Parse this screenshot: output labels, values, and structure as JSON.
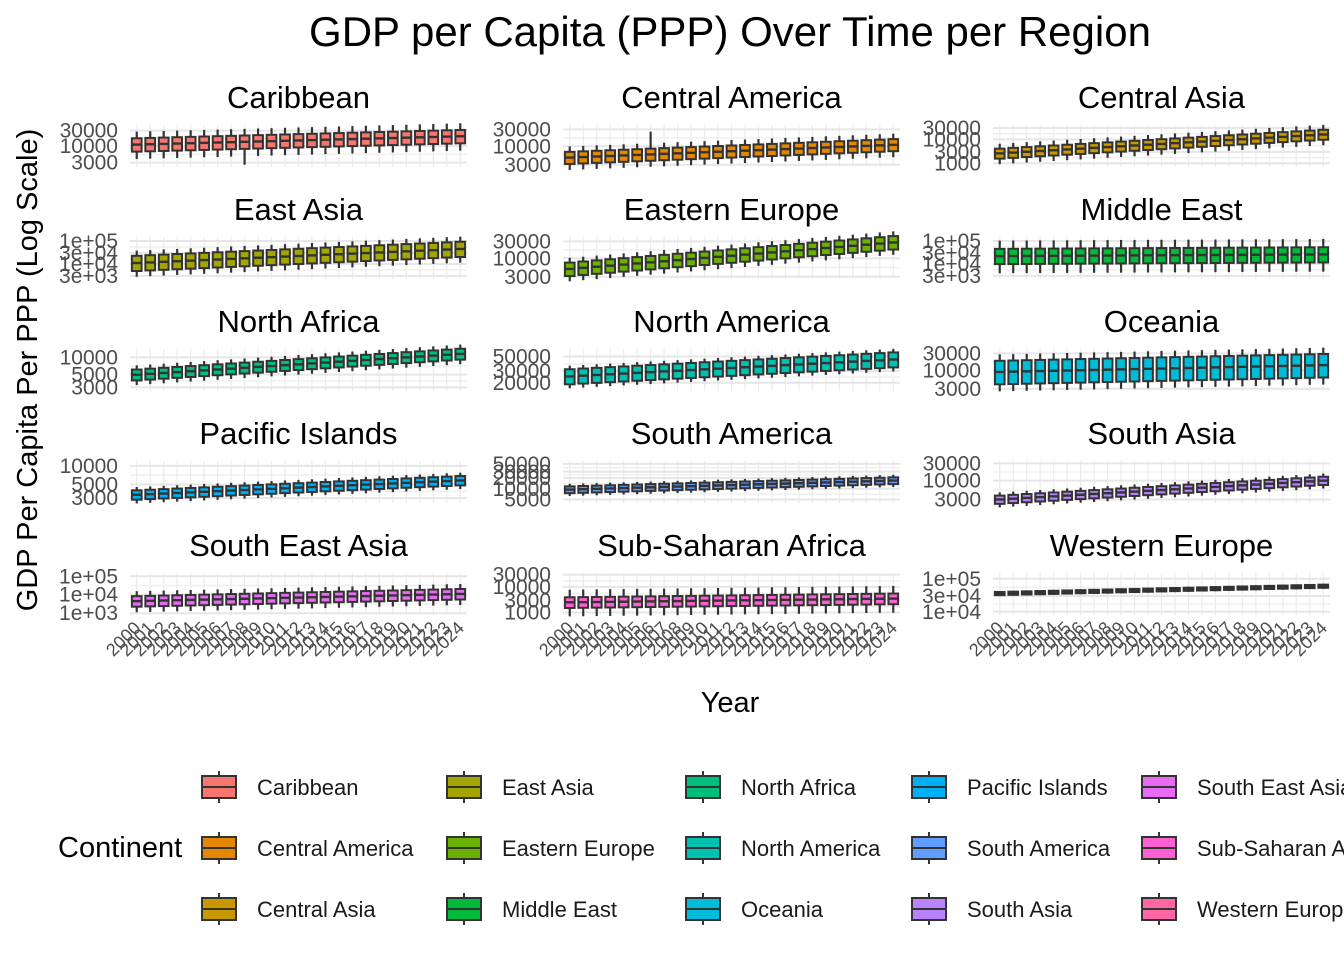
{
  "chart_data": {
    "type": "box",
    "title": "GDP per Capita (PPP) Over Time per Region",
    "xlabel": "Year",
    "ylabel": "GDP Per Capita Per PPP (Log Scale)",
    "y_scale": "log",
    "grid": true,
    "x_tick_labels": [
      "2000",
      "2001",
      "2002",
      "2003",
      "2004",
      "2005",
      "2006",
      "2007",
      "2008",
      "2009",
      "2010",
      "2011",
      "2012",
      "2013",
      "2014",
      "2015",
      "2016",
      "2017",
      "2018",
      "2019",
      "2020",
      "2021",
      "2022",
      "2023",
      "2024"
    ],
    "legend": {
      "title": "Continent",
      "position": "bottom",
      "entries": [
        {
          "name": "Caribbean",
          "color": "#F8766D"
        },
        {
          "name": "Central America",
          "color": "#E58700"
        },
        {
          "name": "Central Asia",
          "color": "#C99800"
        },
        {
          "name": "East Asia",
          "color": "#A3A500"
        },
        {
          "name": "Eastern Europe",
          "color": "#6BB100"
        },
        {
          "name": "Middle East",
          "color": "#00BA38"
        },
        {
          "name": "North Africa",
          "color": "#00BF7D"
        },
        {
          "name": "North America",
          "color": "#00C0AF"
        },
        {
          "name": "Oceania",
          "color": "#00BCD8"
        },
        {
          "name": "Pacific Islands",
          "color": "#00B0F6"
        },
        {
          "name": "South America",
          "color": "#619CFF"
        },
        {
          "name": "South Asia",
          "color": "#B983FF"
        },
        {
          "name": "South East Asia",
          "color": "#E76BF3"
        },
        {
          "name": "Sub-Saharan Africa",
          "color": "#FD61D1"
        },
        {
          "name": "Western Europe",
          "color": "#FF67A4"
        }
      ]
    },
    "panels": [
      {
        "region": "Caribbean",
        "color": "#F8766D",
        "ylim": [
          2200,
          45000
        ],
        "y_ticks": [
          3000,
          10000,
          30000
        ],
        "y_tick_labels": [
          "3000",
          "10000",
          "30000"
        ],
        "median_start": 11000,
        "median_end": 20000,
        "spread": 0.22,
        "whisker": 0.45,
        "extra_low": {
          "year_index": 8,
          "value": 2600
        }
      },
      {
        "region": "Central America",
        "color": "#E58700",
        "ylim": [
          2600,
          40000
        ],
        "y_ticks": [
          3000,
          10000,
          30000
        ],
        "y_tick_labels": [
          "3000",
          "10000",
          "30000"
        ],
        "median_start": 4800,
        "median_end": 11000,
        "spread": 0.18,
        "whisker": 0.35,
        "extra_high": {
          "year_index": 6,
          "value": 26000
        }
      },
      {
        "region": "Central Asia",
        "color": "#C99800",
        "ylim": [
          700,
          40000
        ],
        "y_ticks": [
          1000,
          3000,
          10000,
          30000
        ],
        "y_tick_labels": [
          "1000",
          "3000",
          "10000",
          "30000"
        ],
        "median_start": 2600,
        "median_end": 16000,
        "spread": 0.22,
        "whisker": 0.45
      },
      {
        "region": "East Asia",
        "color": "#A3A500",
        "ylim": [
          2200,
          150000
        ],
        "y_ticks": [
          3000,
          10000,
          30000,
          100000
        ],
        "y_tick_labels": [
          "3e+03",
          "1e+04",
          "3e+04",
          "1e+05"
        ],
        "median_start": 11000,
        "median_end": 45000,
        "spread": 0.35,
        "whisker": 0.6
      },
      {
        "region": "Eastern Europe",
        "color": "#6BB100",
        "ylim": [
          2600,
          40000
        ],
        "y_ticks": [
          3000,
          10000,
          30000
        ],
        "y_tick_labels": [
          "3000",
          "10000",
          "30000"
        ],
        "median_start": 5000,
        "median_end": 28000,
        "spread": 0.2,
        "whisker": 0.35
      },
      {
        "region": "Middle East",
        "color": "#00BA38",
        "ylim": [
          2200,
          150000
        ],
        "y_ticks": [
          3000,
          10000,
          30000,
          100000
        ],
        "y_tick_labels": [
          "3e+03",
          "1e+04",
          "3e+04",
          "1e+05"
        ],
        "median_start": 22000,
        "median_end": 26000,
        "spread": 0.35,
        "whisker": 0.75
      },
      {
        "region": "North Africa",
        "color": "#00BF7D",
        "ylim": [
          2600,
          14000
        ],
        "y_ticks": [
          3000,
          5000,
          10000
        ],
        "y_tick_labels": [
          "3000",
          "5000",
          "10000"
        ],
        "median_start": 5000,
        "median_end": 11500,
        "spread": 0.1,
        "whisker": 0.18
      },
      {
        "region": "North America",
        "color": "#00C0AF",
        "ylim": [
          15000,
          65000
        ],
        "y_ticks": [
          20000,
          30000,
          50000
        ],
        "y_tick_labels": [
          "20000",
          "30000",
          "50000"
        ],
        "median_start": 25000,
        "median_end": 45000,
        "spread": 0.12,
        "whisker": 0.18
      },
      {
        "region": "Oceania",
        "color": "#00BCD8",
        "ylim": [
          2600,
          40000
        ],
        "y_ticks": [
          3000,
          10000,
          30000
        ],
        "y_tick_labels": [
          "3000",
          "10000",
          "30000"
        ],
        "median_start": 9000,
        "median_end": 14000,
        "spread": 0.35,
        "whisker": 0.55
      },
      {
        "region": "Pacific Islands",
        "color": "#00B0F6",
        "ylim": [
          2500,
          12000
        ],
        "y_ticks": [
          3000,
          5000,
          10000
        ],
        "y_tick_labels": [
          "3000",
          "5000",
          "10000"
        ],
        "median_start": 3400,
        "median_end": 5800,
        "spread": 0.08,
        "whisker": 0.14
      },
      {
        "region": "South America",
        "color": "#619CFF",
        "ylim": [
          4000,
          60000
        ],
        "y_ticks": [
          5000,
          10000,
          20000,
          30000,
          50000
        ],
        "y_tick_labels": [
          "5000",
          "10000",
          "20000",
          "30000",
          "50000"
        ],
        "median_start": 9500,
        "median_end": 17000,
        "spread": 0.1,
        "whisker": 0.18
      },
      {
        "region": "South Asia",
        "color": "#B983FF",
        "ylim": [
          2400,
          35000
        ],
        "y_ticks": [
          3000,
          10000,
          30000
        ],
        "y_tick_labels": [
          "3000",
          "10000",
          "30000"
        ],
        "median_start": 3000,
        "median_end": 10000,
        "spread": 0.12,
        "whisker": 0.22
      },
      {
        "region": "South East Asia",
        "color": "#E76BF3",
        "ylim": [
          800,
          150000
        ],
        "y_ticks": [
          1000,
          10000,
          100000
        ],
        "y_tick_labels": [
          "1e+03",
          "1e+04",
          "1e+05"
        ],
        "median_start": 4500,
        "median_end": 11000,
        "spread": 0.3,
        "whisker": 0.6
      },
      {
        "region": "Sub-Saharan Africa",
        "color": "#FD61D1",
        "ylim": [
          800,
          35000
        ],
        "y_ticks": [
          1000,
          3000,
          10000,
          30000
        ],
        "y_tick_labels": [
          "1000",
          "3000",
          "10000",
          "30000"
        ],
        "median_start": 2500,
        "median_end": 3500,
        "spread": 0.22,
        "whisker": 0.55
      },
      {
        "region": "Western Europe",
        "color": "#FF67A4",
        "ylim": [
          8000,
          150000
        ],
        "y_ticks": [
          10000,
          30000,
          100000
        ],
        "y_tick_labels": [
          "1e+04",
          "3e+04",
          "1e+05"
        ],
        "median_start": 36000,
        "median_end": 60000,
        "spread": 0.05,
        "whisker": 0.08
      }
    ]
  }
}
